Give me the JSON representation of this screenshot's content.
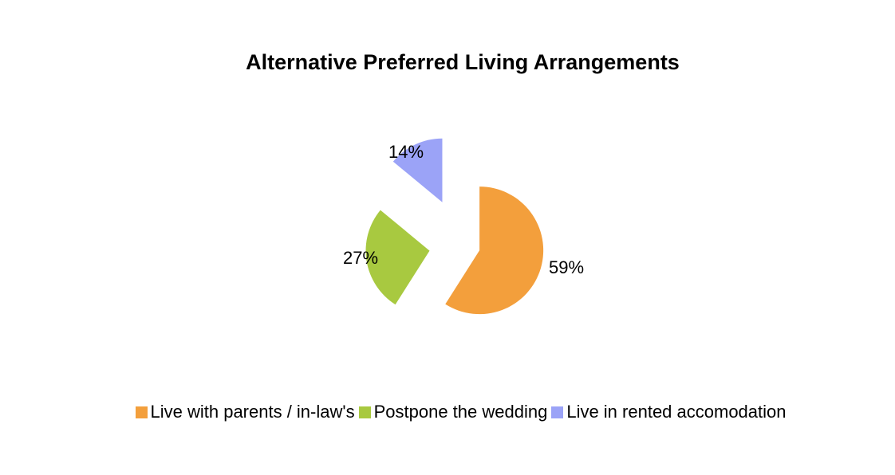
{
  "chart_data": {
    "type": "pie",
    "title": "Alternative Preferred Living Arrangements",
    "categories": [
      "Live with parents / in-law's",
      "Postpone the wedding",
      "Live in rented accomodation"
    ],
    "values": [
      59,
      27,
      14
    ],
    "labels": [
      "59%",
      "27%",
      "14%"
    ],
    "colors": [
      "#F39F3C",
      "#A8C940",
      "#9BA3F7"
    ],
    "exploded": true,
    "legend_position": "bottom"
  }
}
